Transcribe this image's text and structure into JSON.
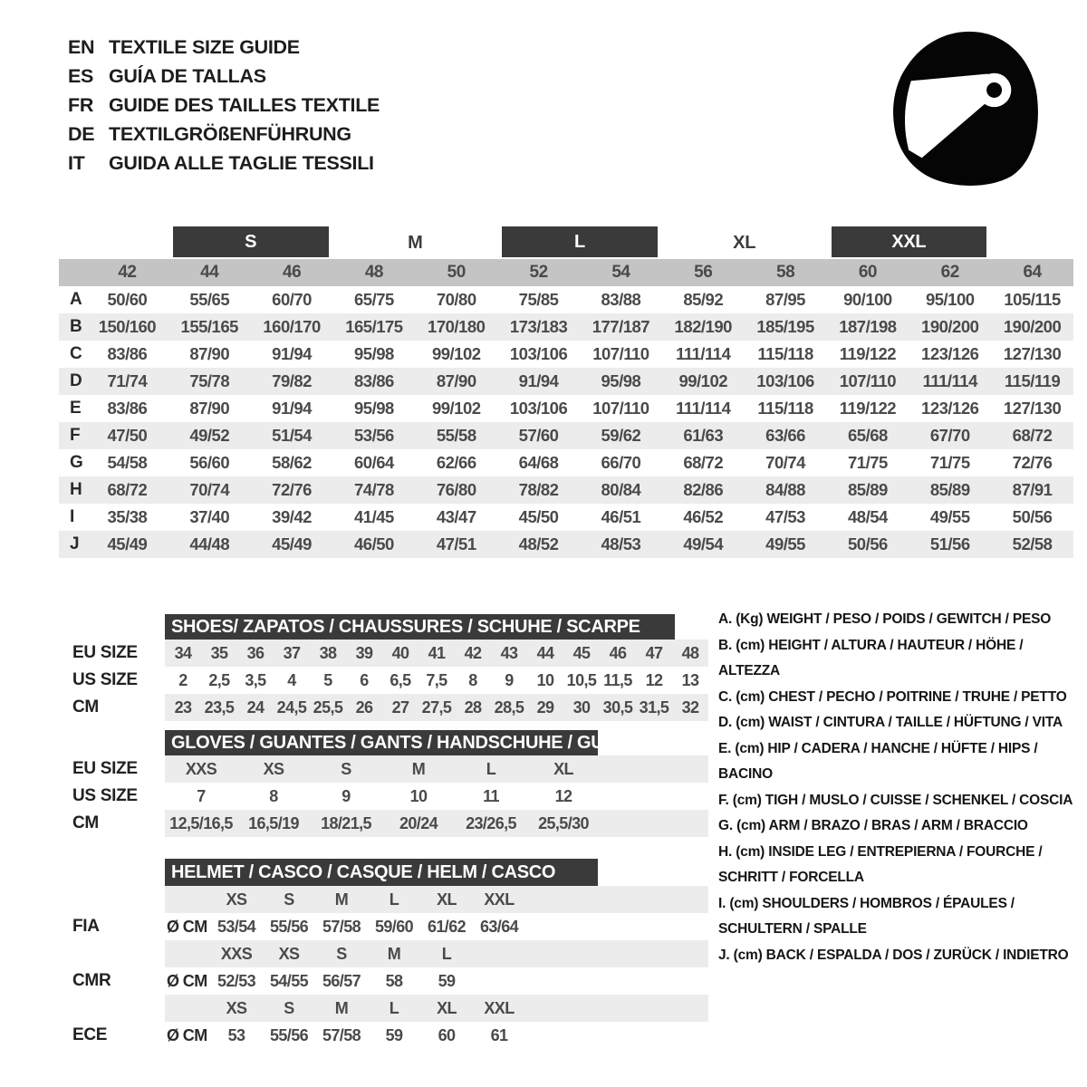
{
  "header": {
    "languages": [
      {
        "code": "EN",
        "title": "TEXTILE SIZE GUIDE"
      },
      {
        "code": "ES",
        "title": "GUÍA DE TALLAS"
      },
      {
        "code": "FR",
        "title": "GUIDE DES TAILLES TEXTILE"
      },
      {
        "code": "DE",
        "title": "TEXTILGRÖßENFÜHRUNG"
      },
      {
        "code": "IT",
        "title": "GUIDA ALLE TAGLIE TESSILI"
      }
    ],
    "icon": "racing-helmet-icon"
  },
  "main_table": {
    "size_groups": [
      {
        "label": "S",
        "dark": true
      },
      {
        "label": "M",
        "dark": false
      },
      {
        "label": "L",
        "dark": true
      },
      {
        "label": "XL",
        "dark": false
      },
      {
        "label": "XXL",
        "dark": true
      }
    ],
    "numeric_sizes": [
      "42",
      "44",
      "46",
      "48",
      "50",
      "52",
      "54",
      "56",
      "58",
      "60",
      "62",
      "64"
    ],
    "rows": [
      {
        "label": "A",
        "values": [
          "50/60",
          "55/65",
          "60/70",
          "65/75",
          "70/80",
          "75/85",
          "83/88",
          "85/92",
          "87/95",
          "90/100",
          "95/100",
          "105/115"
        ]
      },
      {
        "label": "B",
        "values": [
          "150/160",
          "155/165",
          "160/170",
          "165/175",
          "170/180",
          "173/183",
          "177/187",
          "182/190",
          "185/195",
          "187/198",
          "190/200",
          "190/200"
        ]
      },
      {
        "label": "C",
        "values": [
          "83/86",
          "87/90",
          "91/94",
          "95/98",
          "99/102",
          "103/106",
          "107/110",
          "111/114",
          "115/118",
          "119/122",
          "123/126",
          "127/130"
        ]
      },
      {
        "label": "D",
        "values": [
          "71/74",
          "75/78",
          "79/82",
          "83/86",
          "87/90",
          "91/94",
          "95/98",
          "99/102",
          "103/106",
          "107/110",
          "111/114",
          "115/119"
        ]
      },
      {
        "label": "E",
        "values": [
          "83/86",
          "87/90",
          "91/94",
          "95/98",
          "99/102",
          "103/106",
          "107/110",
          "111/114",
          "115/118",
          "119/122",
          "123/126",
          "127/130"
        ]
      },
      {
        "label": "F",
        "values": [
          "47/50",
          "49/52",
          "51/54",
          "53/56",
          "55/58",
          "57/60",
          "59/62",
          "61/63",
          "63/66",
          "65/68",
          "67/70",
          "68/72"
        ]
      },
      {
        "label": "G",
        "values": [
          "54/58",
          "56/60",
          "58/62",
          "60/64",
          "62/66",
          "64/68",
          "66/70",
          "68/72",
          "70/74",
          "71/75",
          "71/75",
          "72/76"
        ]
      },
      {
        "label": "H",
        "values": [
          "68/72",
          "70/74",
          "72/76",
          "74/78",
          "76/80",
          "78/82",
          "80/84",
          "82/86",
          "84/88",
          "85/89",
          "85/89",
          "87/91"
        ]
      },
      {
        "label": "I",
        "values": [
          "35/38",
          "37/40",
          "39/42",
          "41/45",
          "43/47",
          "45/50",
          "46/51",
          "46/52",
          "47/53",
          "48/54",
          "49/55",
          "50/56"
        ]
      },
      {
        "label": "J",
        "values": [
          "45/49",
          "44/48",
          "45/49",
          "46/50",
          "47/51",
          "48/52",
          "48/53",
          "49/54",
          "49/55",
          "50/56",
          "51/56",
          "52/58"
        ]
      }
    ]
  },
  "shoes_table": {
    "title": "SHOES/ ZAPATOS / CHAUSSURES / SCHUHE / SCARPE",
    "rows": [
      {
        "label": "EU SIZE",
        "values": [
          "34",
          "35",
          "36",
          "37",
          "38",
          "39",
          "40",
          "41",
          "42",
          "43",
          "44",
          "45",
          "46",
          "47",
          "48"
        ]
      },
      {
        "label": "US SIZE",
        "values": [
          "2",
          "2,5",
          "3,5",
          "4",
          "5",
          "6",
          "6,5",
          "7,5",
          "8",
          "9",
          "10",
          "10,5",
          "11,5",
          "12",
          "13"
        ]
      },
      {
        "label": "CM",
        "values": [
          "23",
          "23,5",
          "24",
          "24,5",
          "25,5",
          "26",
          "27",
          "27,5",
          "28",
          "28,5",
          "29",
          "30",
          "30,5",
          "31,5",
          "32"
        ]
      }
    ]
  },
  "gloves_table": {
    "title": "GLOVES / GUANTES / GANTS / HANDSCHUHE / GUANTI",
    "rows": [
      {
        "label": "EU SIZE",
        "values": [
          "XXS",
          "XS",
          "S",
          "M",
          "L",
          "XL"
        ]
      },
      {
        "label": "US SIZE",
        "values": [
          "7",
          "8",
          "9",
          "10",
          "11",
          "12"
        ]
      },
      {
        "label": "CM",
        "values": [
          "12,5/16,5",
          "16,5/19",
          "18/21,5",
          "20/24",
          "23/26,5",
          "25,5/30"
        ]
      }
    ]
  },
  "helmet_table": {
    "title": "HELMET / CASCO / CASQUE / HELM / CASCO",
    "standards": [
      {
        "name": "FIA",
        "unit": "Ø CM",
        "sizes": [
          "XS",
          "S",
          "M",
          "L",
          "XL",
          "XXL"
        ],
        "values": [
          "53/54",
          "55/56",
          "57/58",
          "59/60",
          "61/62",
          "63/64"
        ]
      },
      {
        "name": "CMR",
        "unit": "Ø CM",
        "sizes": [
          "XXS",
          "XS",
          "S",
          "M",
          "L"
        ],
        "values": [
          "52/53",
          "54/55",
          "56/57",
          "58",
          "59"
        ]
      },
      {
        "name": "ECE",
        "unit": "Ø CM",
        "sizes": [
          "XS",
          "S",
          "M",
          "L",
          "XL",
          "XXL"
        ],
        "values": [
          "53",
          "55/56",
          "57/58",
          "59",
          "60",
          "61"
        ]
      }
    ]
  },
  "legend": [
    "A. (Kg) WEIGHT / PESO / POIDS / GEWITCH / PESO",
    "B. (cm) HEIGHT / ALTURA / HAUTEUR / HÖHE / ALTEZZA",
    "C. (cm) CHEST / PECHO / POITRINE / TRUHE / PETTO",
    "D. (cm) WAIST / CINTURA / TAILLE / HÜFTUNG / VITA",
    "E. (cm) HIP / CADERA / HANCHE / HÜFTE / HIPS / BACINO",
    "F. (cm) TIGH / MUSLO / CUISSE / SCHENKEL / COSCIA",
    "G. (cm) ARM / BRAZO / BRAS / ARM / BRACCIO",
    "H. (cm) INSIDE LEG / ENTREPIERNA / FOURCHE / SCHRITT / FORCELLA",
    "I. (cm) SHOULDERS / HOMBROS / ÉPAULES / SCHULTERN / SPALLE",
    "J. (cm) BACK / ESPALDA / DOS / ZURÜCK / INDIETRO"
  ],
  "colors": {
    "dark_bar": "#3a3a3a",
    "row_shade": "#ececec",
    "numeric_row_bg": "#c4c4c4",
    "text_dark": "#1d1d1d",
    "text_value": "#4a4a4a"
  }
}
